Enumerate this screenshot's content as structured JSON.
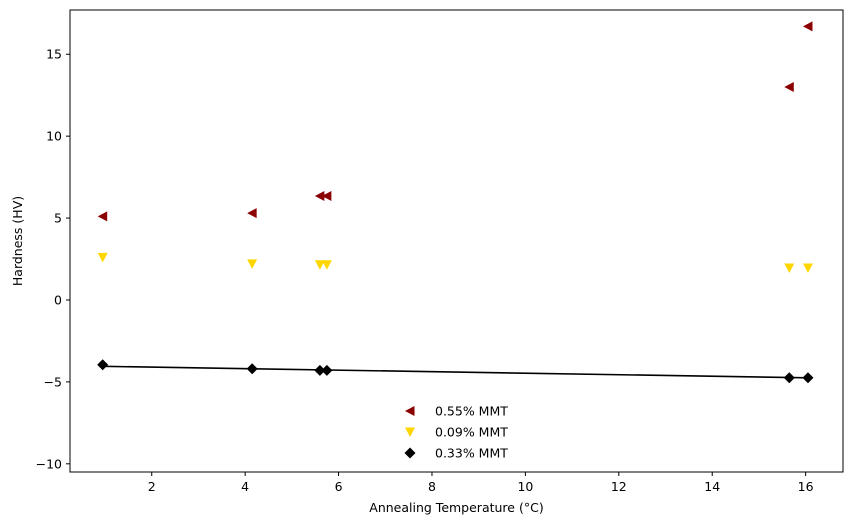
{
  "chart_data": {
    "type": "scatter",
    "xlabel": "Annealing Temperature (°C)",
    "ylabel": "Hardness (HV)",
    "xlim": [
      0.25,
      16.8
    ],
    "ylim": [
      -10.5,
      17.7
    ],
    "xticks": [
      2,
      4,
      6,
      8,
      10,
      12,
      14,
      16
    ],
    "yticks": [
      -10,
      -5,
      0,
      5,
      10,
      15
    ],
    "grid": false,
    "legend_placement": "lower-center",
    "series": [
      {
        "name": "0.55% MMT",
        "marker": "triangle-left",
        "color": "#8b0000",
        "x": [
          0.95,
          4.15,
          5.6,
          5.75,
          15.65,
          16.05
        ],
        "y": [
          5.1,
          5.3,
          6.35,
          6.35,
          13.0,
          16.7
        ]
      },
      {
        "name": "0.09% MMT",
        "marker": "triangle-down",
        "color": "#ffd700",
        "x": [
          0.95,
          4.15,
          5.6,
          5.75,
          15.65,
          16.05
        ],
        "y": [
          2.6,
          2.2,
          2.15,
          2.15,
          1.95,
          1.95
        ]
      },
      {
        "name": "0.33% MMT",
        "marker": "diamond",
        "color": "#000000",
        "x": [
          0.95,
          4.15,
          5.6,
          5.75,
          15.65,
          16.05
        ],
        "y": [
          -3.95,
          -4.2,
          -4.3,
          -4.3,
          -4.75,
          -4.75
        ],
        "fit_line": {
          "x": [
            0.95,
            16.05
          ],
          "y": [
            -4.05,
            -4.75
          ]
        }
      }
    ]
  }
}
